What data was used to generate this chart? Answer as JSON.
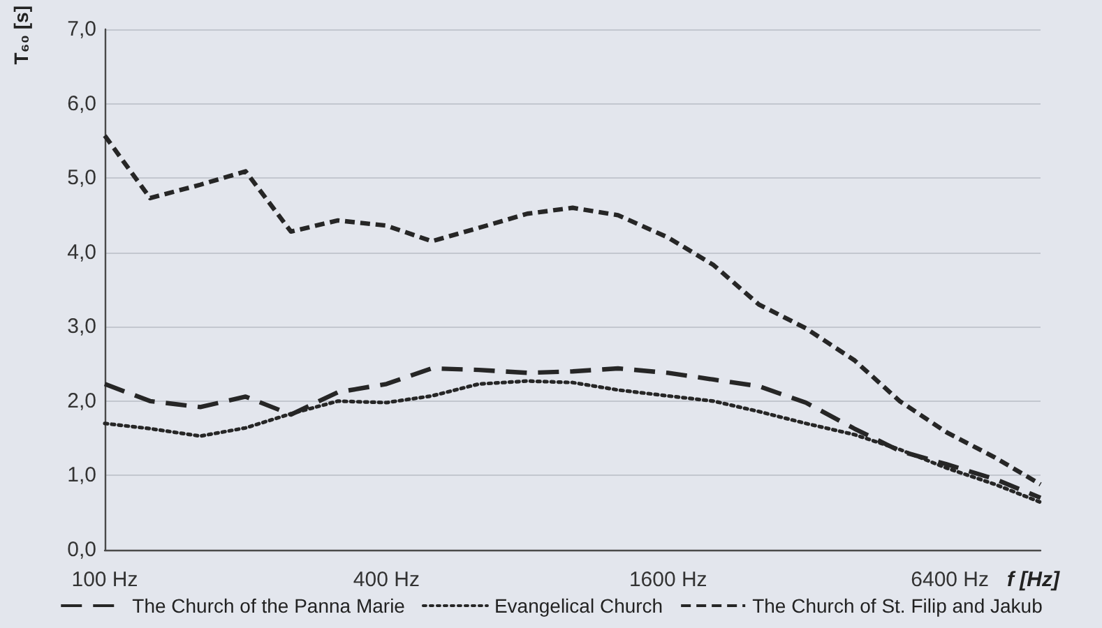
{
  "chart_data": {
    "type": "line",
    "xlabel": "f [Hz]",
    "ylabel": "T₆₀ [s]",
    "x": [
      100,
      125,
      160,
      200,
      250,
      315,
      400,
      500,
      630,
      800,
      1000,
      1250,
      1600,
      2000,
      2500,
      3150,
      4000,
      5000,
      6300,
      8000,
      10000
    ],
    "series": [
      {
        "name": "The Church of the Panna Marie",
        "color": "#262626",
        "line_style": "dashed",
        "values": [
          2.23,
          2.0,
          1.92,
          2.06,
          1.82,
          2.12,
          2.23,
          2.44,
          2.42,
          2.38,
          2.4,
          2.44,
          2.38,
          2.29,
          2.2,
          1.98,
          1.63,
          1.33,
          1.15,
          0.95,
          0.7
        ]
      },
      {
        "name": "Evangelical Church",
        "color": "#262626",
        "line_style": "dotted",
        "values": [
          1.7,
          1.63,
          1.53,
          1.64,
          1.83,
          2.0,
          1.98,
          2.07,
          2.23,
          2.27,
          2.25,
          2.15,
          2.07,
          2.0,
          1.86,
          1.7,
          1.55,
          1.35,
          1.1,
          0.88,
          0.64
        ]
      },
      {
        "name": "The Church of St. Filip and Jakub",
        "color": "#262626",
        "line_style": "dashed",
        "values": [
          5.57,
          4.73,
          4.91,
          5.09,
          4.28,
          4.43,
          4.36,
          4.15,
          4.33,
          4.52,
          4.6,
          4.5,
          4.2,
          3.83,
          3.3,
          2.98,
          2.55,
          2.0,
          1.58,
          1.24,
          0.88
        ]
      }
    ],
    "log": "x",
    "xlim": [
      100,
      10000
    ],
    "xticks": [
      {
        "value": 100,
        "label": "100 Hz"
      },
      {
        "value": 400,
        "label": "400 Hz"
      },
      {
        "value": 1600,
        "label": "1600 Hz"
      },
      {
        "value": 6400,
        "label": "6400 Hz"
      }
    ],
    "ylim": [
      0,
      7
    ],
    "yticks": [
      {
        "value": 0,
        "label": "0,0"
      },
      {
        "value": 1,
        "label": "1,0"
      },
      {
        "value": 2,
        "label": "2,0"
      },
      {
        "value": 3,
        "label": "3,0"
      },
      {
        "value": 4,
        "label": "4,0"
      },
      {
        "value": 5,
        "label": "5,0"
      },
      {
        "value": 6,
        "label": "6,0"
      },
      {
        "value": 7,
        "label": "7,0"
      }
    ],
    "grid": "y",
    "legend": "bottom",
    "marker": "none"
  }
}
